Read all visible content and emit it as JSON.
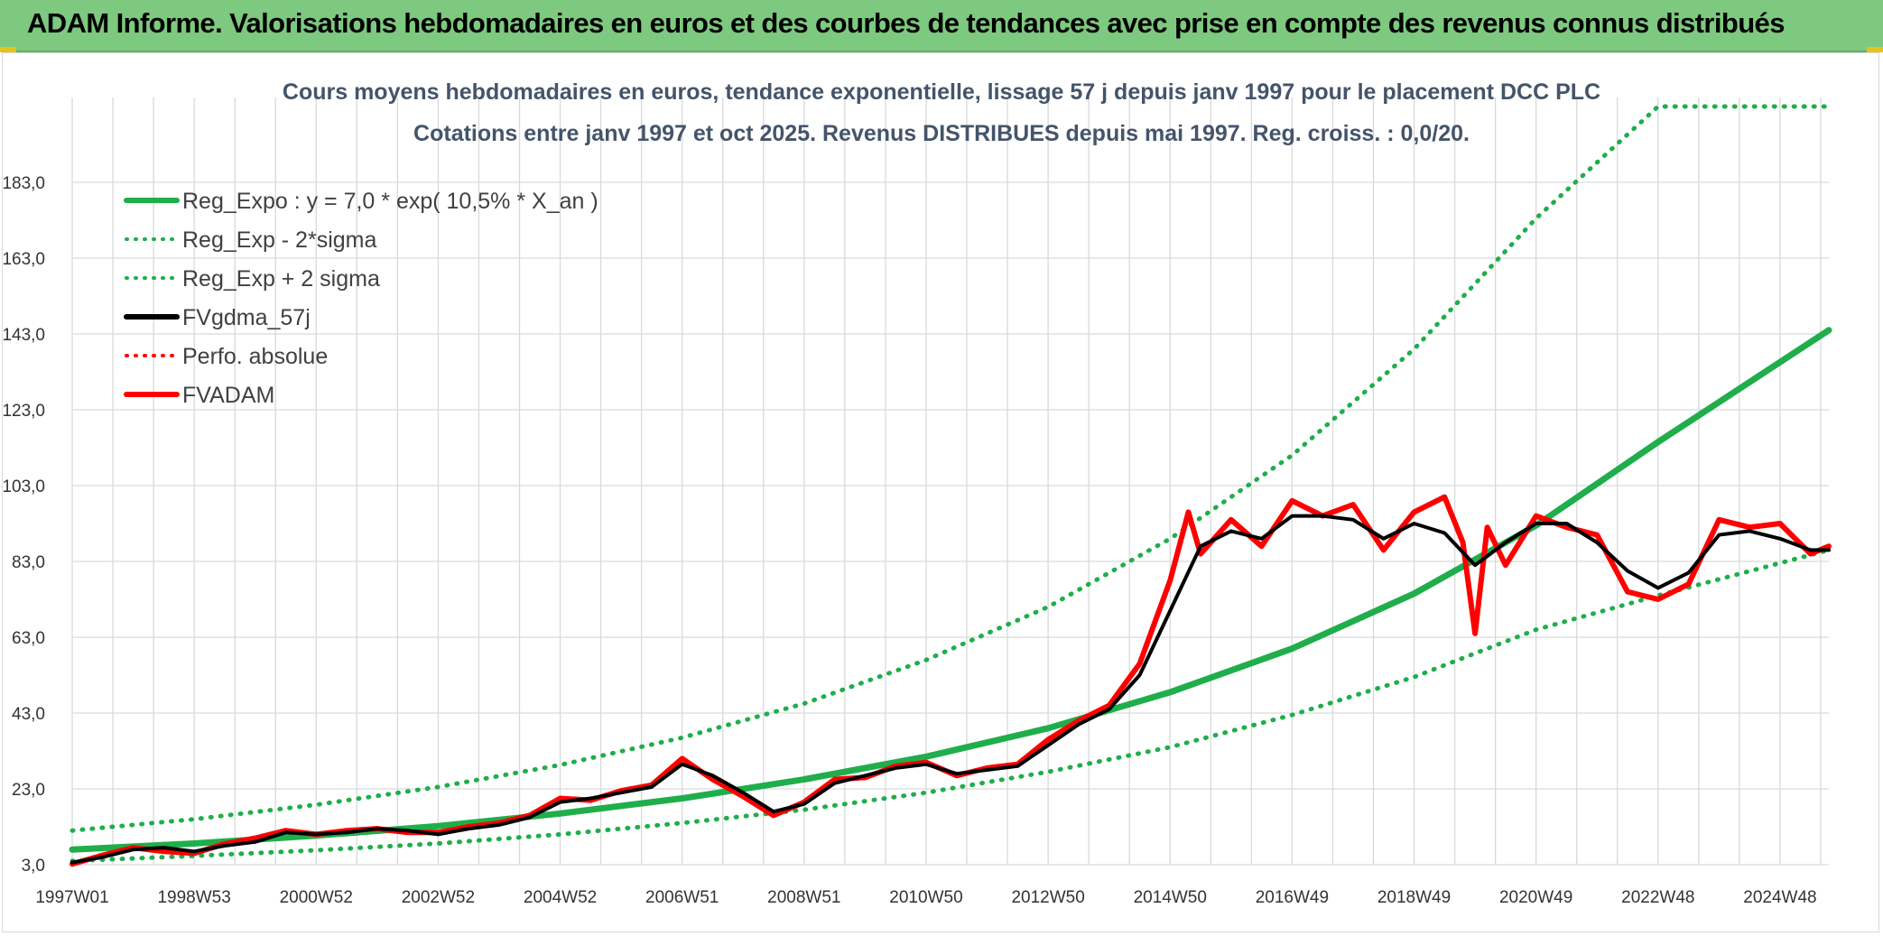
{
  "header": {
    "title": "ADAM Informe. Valorisations hebdomadaires en euros et des courbes de tendances avec prise en compte des revenus connus distribués"
  },
  "colors": {
    "banner": "#7dc97f",
    "trend": "#1fae4b",
    "band": "#1fae4b",
    "smoothed": "#000000",
    "perf": "#ff0000",
    "fvadam": "#ff0000",
    "grid": "#d9d9d9"
  },
  "chart_data": {
    "type": "line",
    "title_line1": "Cours moyens hebdomadaires en euros, tendance exponentielle, lissage 57 j depuis janv 1997 pour le placement DCC PLC",
    "title_line2": "Cotations entre janv 1997 et oct 2025. Revenus DISTRIBUES depuis mai 1997. Reg. croiss. : 0,0/20.",
    "x_tick_labels": [
      "1997W01",
      "1998W53",
      "2000W52",
      "2002W52",
      "2004W52",
      "2006W51",
      "2008W51",
      "2010W50",
      "2012W50",
      "2014W50",
      "2016W49",
      "2018W49",
      "2020W49",
      "2022W48",
      "2024W48"
    ],
    "x_range_years": [
      1997.0,
      2025.8
    ],
    "y_tick_labels": [
      "3,0",
      "23,0",
      "43,0",
      "63,0",
      "83,0",
      "103,0",
      "123,0",
      "143,0",
      "163,0",
      "183,0"
    ],
    "ylim": [
      3,
      203
    ],
    "grid": true,
    "legend_position": "top-left",
    "legend": [
      {
        "label": "Reg_Expo : y = 7,0 * exp( 10,5% *  X_an )",
        "style": "solid",
        "color": "#1fae4b"
      },
      {
        "label": "Reg_Exp - 2*sigma",
        "style": "dotted",
        "color": "#1fae4b"
      },
      {
        "label": "Reg_Exp + 2 sigma",
        "style": "dotted",
        "color": "#1fae4b"
      },
      {
        "label": "FVgdma_57j",
        "style": "solid",
        "color": "#000000"
      },
      {
        "label": "Perfo. absolue",
        "style": "dotted",
        "color": "#ff0000"
      },
      {
        "label": "FVADAM",
        "style": "solid",
        "color": "#ff0000"
      }
    ],
    "series": [
      {
        "name": "Reg_Expo : y = 7,0 * exp( 10,5% *  X_an )",
        "x": [
          1997.0,
          1999.0,
          2001.0,
          2003.0,
          2005.0,
          2007.0,
          2009.0,
          2011.0,
          2013.0,
          2015.0,
          2017.0,
          2019.0,
          2021.0,
          2023.0,
          2025.8
        ],
        "values": [
          7.0,
          8.6,
          10.7,
          13.2,
          16.5,
          20.5,
          25.5,
          31.5,
          39.0,
          48.5,
          60.0,
          74.5,
          92.5,
          114.5,
          144.0
        ]
      },
      {
        "name": "Reg_Exp - 2*sigma",
        "x": [
          1997.0,
          1999.0,
          2001.0,
          2003.0,
          2005.0,
          2007.0,
          2009.0,
          2011.0,
          2013.0,
          2015.0,
          2017.0,
          2019.0,
          2021.0,
          2023.0,
          2025.8
        ],
        "values": [
          4.0,
          5.3,
          6.8,
          8.6,
          11.0,
          14.0,
          17.5,
          22.0,
          27.5,
          34.0,
          42.5,
          52.5,
          65.0,
          74.0,
          86.0
        ]
      },
      {
        "name": "Reg_Exp + 2 sigma",
        "x": [
          1997.0,
          1999.0,
          2001.0,
          2003.0,
          2005.0,
          2007.0,
          2009.0,
          2011.0,
          2013.0,
          2015.0,
          2017.0,
          2019.0,
          2021.0,
          2023.0,
          2024.0,
          2025.8
        ],
        "values": [
          12.0,
          15.0,
          18.8,
          23.5,
          29.3,
          36.5,
          45.5,
          57.0,
          71.0,
          89.0,
          111.0,
          139.0,
          173.5,
          203.0,
          203.0,
          203.0
        ]
      },
      {
        "name": "FVgdma_57j",
        "x": [
          1997.0,
          1997.5,
          1998.0,
          1998.5,
          1999.0,
          1999.5,
          2000.0,
          2000.5,
          2001.0,
          2001.5,
          2002.0,
          2002.5,
          2003.0,
          2003.5,
          2004.0,
          2004.5,
          2005.0,
          2005.5,
          2006.0,
          2006.5,
          2007.0,
          2007.5,
          2008.0,
          2008.5,
          2009.0,
          2009.5,
          2010.0,
          2010.5,
          2011.0,
          2011.5,
          2012.0,
          2012.5,
          2013.0,
          2013.5,
          2014.0,
          2014.5,
          2015.0,
          2015.5,
          2016.0,
          2016.5,
          2017.0,
          2017.5,
          2018.0,
          2018.5,
          2019.0,
          2019.5,
          2020.0,
          2020.5,
          2021.0,
          2021.5,
          2022.0,
          2022.5,
          2023.0,
          2023.5,
          2024.0,
          2024.5,
          2025.0,
          2025.5,
          2025.8
        ],
        "values": [
          3.6,
          5.0,
          7.0,
          7.5,
          6.5,
          8.0,
          9.0,
          11.5,
          11.0,
          11.5,
          12.5,
          12.0,
          11.0,
          12.5,
          13.5,
          15.5,
          19.5,
          20.5,
          22.0,
          23.5,
          29.5,
          26.5,
          22.0,
          17.0,
          19.0,
          24.5,
          26.5,
          28.5,
          29.5,
          27.0,
          28.0,
          29.0,
          34.5,
          40.0,
          44.0,
          53.0,
          70.0,
          87.0,
          91.0,
          89.0,
          95.0,
          95.0,
          94.0,
          89.0,
          93.0,
          90.5,
          82.0,
          88.0,
          93.0,
          93.0,
          88.0,
          80.5,
          76.0,
          80.0,
          90.0,
          91.0,
          89.0,
          86.0,
          86.0
        ]
      },
      {
        "name": "FVADAM",
        "x": [
          1997.0,
          1997.5,
          1998.0,
          1998.5,
          1999.0,
          1999.5,
          2000.0,
          2000.5,
          2001.0,
          2001.5,
          2002.0,
          2002.5,
          2003.0,
          2003.5,
          2004.0,
          2004.5,
          2005.0,
          2005.5,
          2006.0,
          2006.5,
          2007.0,
          2007.5,
          2008.0,
          2008.5,
          2009.0,
          2009.5,
          2010.0,
          2010.5,
          2011.0,
          2011.5,
          2012.0,
          2012.5,
          2013.0,
          2013.5,
          2014.0,
          2014.5,
          2015.0,
          2015.3,
          2015.5,
          2016.0,
          2016.5,
          2017.0,
          2017.5,
          2018.0,
          2018.5,
          2019.0,
          2019.5,
          2019.8,
          2020.0,
          2020.2,
          2020.5,
          2021.0,
          2021.5,
          2022.0,
          2022.5,
          2023.0,
          2023.5,
          2024.0,
          2024.5,
          2025.0,
          2025.5,
          2025.8
        ],
        "values": [
          3.2,
          5.5,
          7.5,
          6.5,
          6.0,
          8.5,
          10.0,
          12.0,
          11.0,
          12.0,
          12.5,
          11.5,
          11.5,
          13.0,
          14.0,
          16.0,
          20.5,
          20.0,
          22.5,
          24.0,
          31.0,
          25.5,
          21.0,
          16.0,
          19.5,
          25.5,
          26.0,
          29.0,
          30.0,
          26.5,
          28.5,
          29.5,
          36.0,
          41.0,
          45.0,
          56.0,
          78.0,
          96.0,
          85.0,
          94.0,
          87.0,
          99.0,
          95.0,
          98.0,
          86.0,
          96.0,
          100.0,
          88.0,
          64.0,
          92.0,
          82.0,
          95.0,
          92.0,
          90.0,
          75.0,
          73.0,
          77.0,
          94.0,
          92.0,
          93.0,
          85.0,
          87.0
        ]
      }
    ]
  }
}
